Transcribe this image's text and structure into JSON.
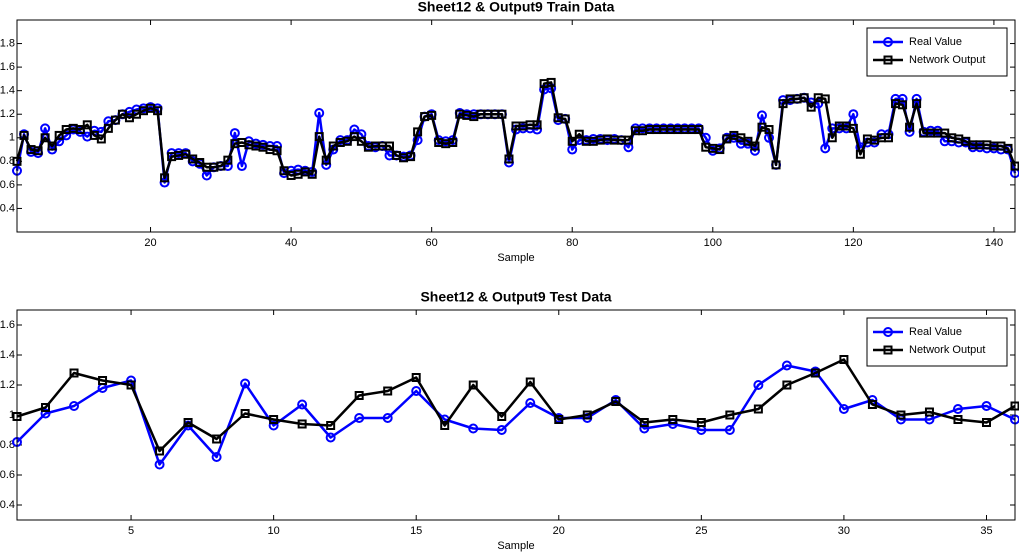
{
  "chart_data": [
    {
      "type": "line",
      "title": "Sheet12 & Output9 Train Data",
      "xlabel": "Sample",
      "x": [
        1,
        2,
        3,
        4,
        5,
        6,
        7,
        8,
        9,
        10,
        11,
        12,
        13,
        14,
        15,
        16,
        17,
        18,
        19,
        20,
        21,
        22,
        23,
        24,
        25,
        26,
        27,
        28,
        29,
        30,
        31,
        32,
        33,
        34,
        35,
        36,
        37,
        38,
        39,
        40,
        41,
        42,
        43,
        44,
        45,
        46,
        47,
        48,
        49,
        50,
        51,
        52,
        53,
        54,
        55,
        56,
        57,
        58,
        59,
        60,
        61,
        62,
        63,
        64,
        65,
        66,
        67,
        68,
        69,
        70,
        71,
        72,
        73,
        74,
        75,
        76,
        77,
        78,
        79,
        80,
        81,
        82,
        83,
        84,
        85,
        86,
        87,
        88,
        89,
        90,
        91,
        92,
        93,
        94,
        95,
        96,
        97,
        98,
        99,
        100,
        101,
        102,
        103,
        104,
        105,
        106,
        107,
        108,
        109,
        110,
        111,
        112,
        113,
        114,
        115,
        116,
        117,
        118,
        119,
        120,
        121,
        122,
        123,
        124,
        125,
        126,
        127,
        128,
        129,
        130,
        131,
        132,
        133,
        134,
        135,
        136,
        137,
        138,
        139,
        140,
        141,
        142,
        143
      ],
      "series": [
        {
          "name": "Real Value",
          "color": "#0000ff",
          "marker": "circle",
          "values": [
            0.72,
            1.03,
            0.88,
            0.87,
            1.08,
            0.9,
            0.97,
            1.02,
            1.07,
            1.05,
            1.01,
            1.06,
            1.05,
            1.14,
            1.15,
            1.2,
            1.22,
            1.24,
            1.25,
            1.26,
            1.25,
            0.62,
            0.87,
            0.87,
            0.87,
            0.8,
            0.78,
            0.68,
            0.75,
            0.76,
            0.76,
            1.04,
            0.76,
            0.97,
            0.95,
            0.94,
            0.93,
            0.93,
            0.7,
            0.72,
            0.73,
            0.72,
            0.71,
            1.21,
            0.77,
            0.9,
            0.98,
            0.98,
            1.07,
            1.03,
            0.93,
            0.92,
            0.93,
            0.85,
            0.85,
            0.84,
            0.85,
            0.98,
            1.18,
            1.2,
            0.98,
            0.97,
            0.98,
            1.21,
            1.2,
            1.2,
            1.2,
            1.2,
            1.2,
            1.2,
            0.79,
            1.07,
            1.08,
            1.08,
            1.07,
            1.41,
            1.42,
            1.15,
            1.16,
            0.9,
            0.98,
            0.98,
            0.99,
            0.99,
            0.98,
            0.99,
            0.98,
            0.92,
            1.08,
            1.08,
            1.08,
            1.08,
            1.08,
            1.08,
            1.08,
            1.08,
            1.08,
            1.08,
            1.0,
            0.89,
            0.91,
            1.0,
            1.0,
            0.95,
            0.95,
            0.89,
            1.19,
            1.0,
            0.77,
            1.32,
            1.32,
            1.33,
            1.34,
            1.3,
            1.29,
            0.91,
            1.08,
            1.08,
            1.08,
            1.2,
            0.92,
            0.96,
            0.96,
            1.03,
            1.03,
            1.33,
            1.33,
            1.05,
            1.33,
            1.05,
            1.06,
            1.06,
            0.97,
            0.97,
            0.96,
            0.96,
            0.92,
            0.92,
            0.91,
            0.91,
            0.9,
            0.9,
            0.7
          ]
        },
        {
          "name": "Network Output",
          "color": "#000000",
          "marker": "square",
          "values": [
            0.8,
            1.02,
            0.9,
            0.89,
            1.0,
            0.93,
            1.02,
            1.07,
            1.08,
            1.07,
            1.11,
            1.02,
            0.99,
            1.08,
            1.15,
            1.2,
            1.17,
            1.2,
            1.23,
            1.25,
            1.23,
            0.66,
            0.84,
            0.85,
            0.86,
            0.82,
            0.79,
            0.75,
            0.75,
            0.76,
            0.81,
            0.95,
            0.96,
            0.94,
            0.93,
            0.92,
            0.9,
            0.89,
            0.72,
            0.68,
            0.69,
            0.71,
            0.69,
            1.01,
            0.81,
            0.93,
            0.96,
            0.97,
            1.01,
            0.97,
            0.92,
            0.93,
            0.93,
            0.93,
            0.85,
            0.83,
            0.84,
            1.05,
            1.18,
            1.19,
            0.96,
            0.95,
            0.96,
            1.2,
            1.19,
            1.18,
            1.2,
            1.2,
            1.2,
            1.2,
            0.82,
            1.1,
            1.1,
            1.11,
            1.11,
            1.46,
            1.47,
            1.17,
            1.16,
            0.97,
            1.03,
            0.97,
            0.97,
            0.98,
            0.99,
            0.98,
            0.98,
            0.98,
            1.06,
            1.06,
            1.07,
            1.07,
            1.07,
            1.07,
            1.07,
            1.07,
            1.07,
            1.07,
            0.92,
            0.91,
            0.9,
            0.99,
            1.02,
            1.0,
            0.97,
            0.93,
            1.09,
            1.07,
            0.77,
            1.29,
            1.33,
            1.33,
            1.34,
            1.26,
            1.34,
            1.33,
            1.0,
            1.1,
            1.1,
            1.08,
            0.86,
            0.99,
            0.98,
            1.0,
            1.0,
            1.29,
            1.28,
            1.09,
            1.29,
            1.04,
            1.04,
            1.04,
            1.04,
            1.0,
            0.99,
            0.97,
            0.94,
            0.94,
            0.94,
            0.93,
            0.93,
            0.91,
            0.76
          ]
        }
      ],
      "xlim": [
        1,
        143
      ],
      "xticks": [
        20,
        40,
        60,
        80,
        100,
        120,
        140
      ],
      "ylim": [
        0.2,
        2.0
      ],
      "yticks": [
        0.4,
        0.6,
        0.8,
        1,
        1.2,
        1.4,
        1.6,
        1.8
      ],
      "legend": "upper right",
      "grid": false
    },
    {
      "type": "line",
      "title": "Sheet12 & Output9 Test Data",
      "xlabel": "Sample",
      "x": [
        1,
        2,
        3,
        4,
        5,
        6,
        7,
        8,
        9,
        10,
        11,
        12,
        13,
        14,
        15,
        16,
        17,
        18,
        19,
        20,
        21,
        22,
        23,
        24,
        25,
        26,
        27,
        28,
        29,
        30,
        31,
        32,
        33,
        34,
        35,
        36
      ],
      "series": [
        {
          "name": "Real Value",
          "color": "#0000ff",
          "marker": "circle",
          "values": [
            0.82,
            1.01,
            1.06,
            1.18,
            1.23,
            0.67,
            0.93,
            0.72,
            1.21,
            0.93,
            1.07,
            0.85,
            0.98,
            0.98,
            1.16,
            0.97,
            0.91,
            0.9,
            1.08,
            0.98,
            0.98,
            1.1,
            0.91,
            0.94,
            0.9,
            0.9,
            1.2,
            1.33,
            1.29,
            1.04,
            1.1,
            0.97,
            0.97,
            1.04,
            1.06,
            0.97
          ]
        },
        {
          "name": "Network Output",
          "color": "#000000",
          "marker": "square",
          "values": [
            0.99,
            1.05,
            1.28,
            1.23,
            1.2,
            0.76,
            0.95,
            0.84,
            1.01,
            0.97,
            0.94,
            0.93,
            1.13,
            1.16,
            1.25,
            0.93,
            1.2,
            0.99,
            1.22,
            0.97,
            1.0,
            1.09,
            0.95,
            0.97,
            0.95,
            1.0,
            1.04,
            1.2,
            1.28,
            1.37,
            1.07,
            1.0,
            1.02,
            0.97,
            0.95,
            1.06
          ]
        }
      ],
      "xlim": [
        1,
        36
      ],
      "xticks": [
        5,
        10,
        15,
        20,
        25,
        30,
        35
      ],
      "ylim": [
        0.3,
        1.7
      ],
      "yticks": [
        0.4,
        0.6,
        0.8,
        1,
        1.2,
        1.4,
        1.6
      ],
      "legend": "upper right",
      "grid": false
    }
  ]
}
